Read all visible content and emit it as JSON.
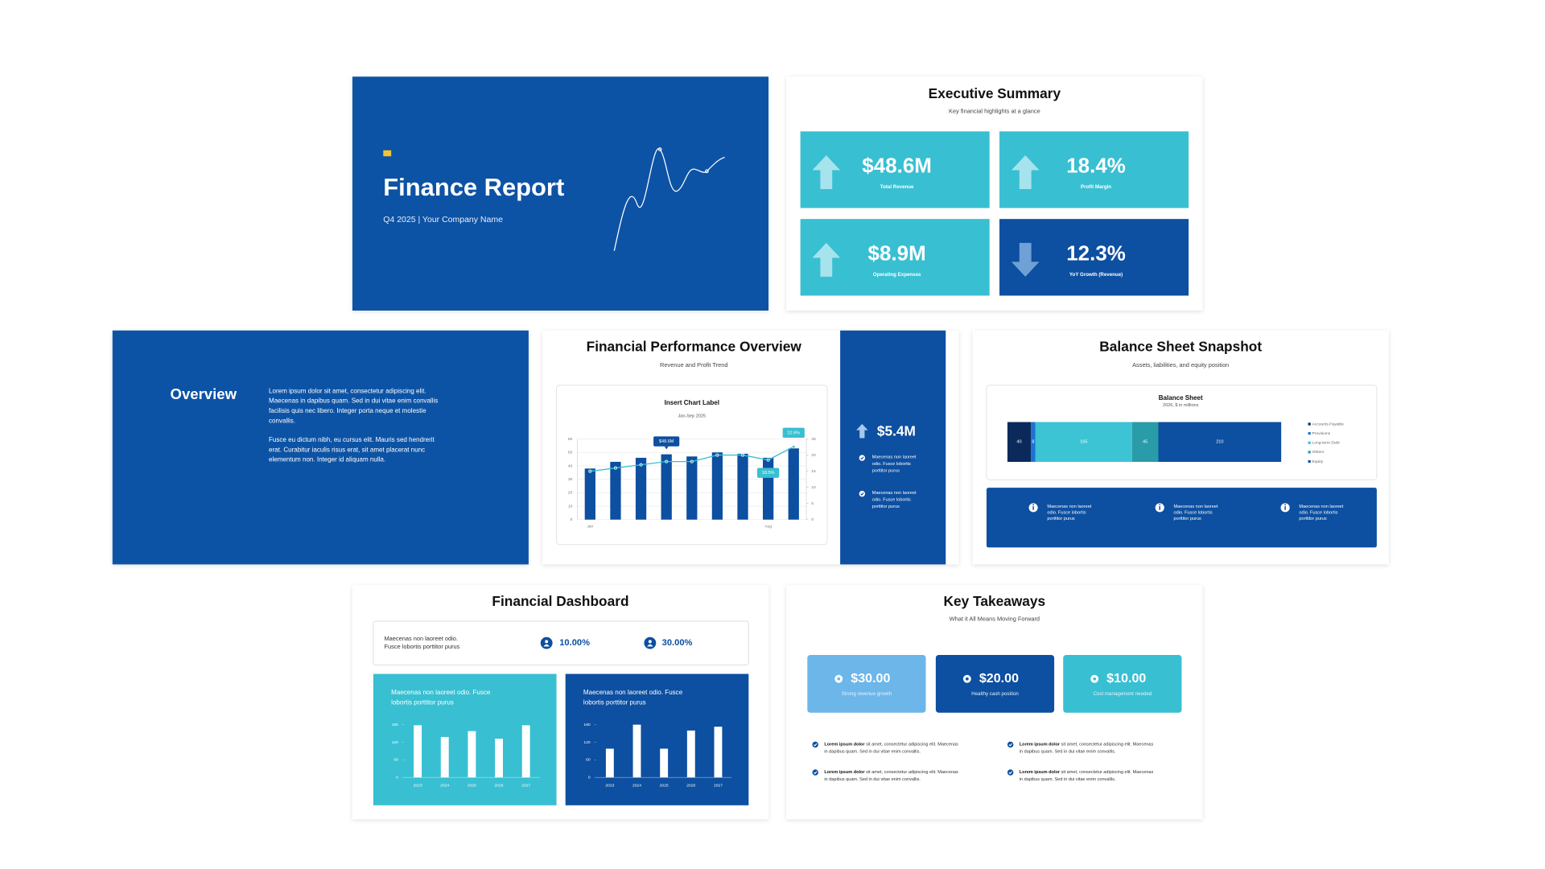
{
  "slides": {
    "title_slide": {
      "title": "Finance Report",
      "subtitle": "Q4 2025 | Your Company Name"
    },
    "executive_summary": {
      "title": "Executive Summary",
      "subtitle": "Key financial highlights at a glance",
      "kpis": [
        {
          "value": "$48.6M",
          "label": "Total Revenue",
          "direction": "up"
        },
        {
          "value": "18.4%",
          "label": "Profit Margin",
          "direction": "up"
        },
        {
          "value": "$8.9M",
          "label": "Operating Expenses",
          "direction": "up"
        },
        {
          "value": "12.3%",
          "label": "YoY Growth (Revenue)",
          "direction": "down"
        }
      ]
    },
    "overview": {
      "title": "Overview",
      "paragraphs": [
        [
          "Lorem ipsum dolor sit amet, consectetur adipiscing elit.",
          "Maecenas in dapibus quam. Sed in dui vitae enim convallis",
          "facilisis quis nec libero. Integer porta neque et molestie",
          "convallis."
        ],
        [
          "Fusce eu dictum nibh, eu cursus elit. Mauris sed hendrerit",
          "erat. Curabitur iaculis risus erat, sit amet placerat nunc",
          "elementum non. Integer id aliquam nulla."
        ]
      ]
    },
    "performance": {
      "title": "Financial Performance Overview",
      "subtitle": "Revenue and Profit Trend",
      "highlight": "$5.4M",
      "bullets": [
        [
          "Maecenas non laoreet",
          "odio. Fusce lobortis",
          "porttitor purus"
        ],
        [
          "Maecenas non laoreet",
          "odio. Fusce lobortis",
          "porttitor purus"
        ]
      ]
    },
    "balance_sheet": {
      "title": "Balance Sheet Snapshot",
      "subtitle": "Assets, liabilities, and equity position",
      "notes": [
        [
          "Maecenas non laoreet",
          "odio. Fusce lobortis",
          "porttitor purus"
        ],
        [
          "Maecenas non laoreet",
          "odio. Fusce lobortis",
          "porttitor purus"
        ],
        [
          "Maecenas non laoreet",
          "odio. Fusce lobortis",
          "porttitor purus"
        ]
      ]
    },
    "dashboard": {
      "title": "Financial Dashboard",
      "description": [
        "Maecenas non laoreet odio.",
        "Fusce lobortis porttitor purus"
      ],
      "stats": [
        "10.00%",
        "30.00%"
      ]
    },
    "takeaways": {
      "title": "Key Takeaways",
      "subtitle": "What it All Means Moving Forward",
      "cards": [
        {
          "value": "$30.00",
          "label": "Strong revenue growth"
        },
        {
          "value": "$20.00",
          "label": "Healthy cash position"
        },
        {
          "value": "$10.00",
          "label": "Cost management needed"
        }
      ],
      "bullets": [
        {
          "bold": "Lorem ipsum dolor",
          "rest": " sit amet, consectetur adipiscing elit. Maecenas",
          "line2": "in dapibus quam. Sed in dui vitae enim convallis."
        },
        {
          "bold": "Lorem ipsum dolor",
          "rest": " sit amet, consectetur adipiscing elit. Maecenas",
          "line2": "in dapibus quam. Sed in dui vitae enim convallis."
        },
        {
          "bold": "Lorem ipsum dolor",
          "rest": " sit amet, consectetur adipiscing elit. Maecenas",
          "line2": "in dapibus quam. Sed in dui vitae enim convallis."
        },
        {
          "bold": "Lorem ipsum dolor",
          "rest": " sit amet, consectetur adipiscing elit. Maecenas",
          "line2": "in dapibus quam. Sed in dui vitae enim convallis."
        }
      ]
    }
  },
  "chart_data": [
    {
      "type": "combo",
      "title": "Insert Chart Label",
      "subtitle": "Jan-Sep 2025",
      "categories": [
        "Jan",
        null,
        null,
        null,
        null,
        null,
        null,
        "Aug",
        null
      ],
      "series": [
        {
          "type": "bar",
          "color": "#0d4fa0",
          "values": [
            38,
            43,
            46,
            48.6,
            47,
            50,
            49,
            46,
            53
          ],
          "value_labels": [
            null,
            null,
            null,
            "$48.6M",
            null,
            null,
            null,
            null,
            null
          ]
        },
        {
          "type": "line",
          "axis": "y2",
          "color": "#38bfd2",
          "values": [
            15,
            16,
            17,
            18,
            18,
            20,
            20,
            18.5,
            22.6
          ],
          "value_labels": [
            null,
            null,
            null,
            null,
            null,
            null,
            null,
            "18.5%",
            "22.6%"
          ]
        }
      ],
      "ylim": [
        0,
        60
      ],
      "yticks": [
        0,
        10,
        20,
        30,
        40,
        50,
        60
      ],
      "y2lim": [
        0,
        25
      ],
      "y2ticks": [
        0,
        5,
        10,
        15,
        20,
        25
      ],
      "grid": true
    },
    {
      "type": "stacked_bar",
      "orientation": "horizontal",
      "title": "Balance Sheet",
      "subtitle": "2026, $ in millions",
      "series": [
        {
          "name": "Accounts Payable",
          "color": "#0b2a5b",
          "values": [
            40
          ]
        },
        {
          "name": "Provisions",
          "color": "#1e73d2",
          "values": [
            8
          ]
        },
        {
          "name": "Long-term Debt",
          "color": "#3cc3d4",
          "values": [
            165
          ]
        },
        {
          "name": "Others",
          "color": "#2a9ba8",
          "values": [
            45
          ]
        },
        {
          "name": "Equity",
          "color": "#0d4fa0",
          "values": [
            210
          ]
        }
      ],
      "legend": "right"
    },
    {
      "type": "bar",
      "title": [
        "Maecenas non laoreet odio. Fusce",
        "lobortis porttitor purus"
      ],
      "categories": [
        "2023",
        "2024",
        "2025",
        "2026",
        "2027"
      ],
      "values": [
        178,
        138,
        158,
        132,
        178
      ],
      "color": "#ffffff",
      "ylim": [
        0,
        180
      ],
      "yticks": [
        0,
        60,
        120,
        180
      ]
    },
    {
      "type": "bar",
      "title": [
        "Maecenas non laoreet odio. Fusce",
        "lobortis porttitor purus"
      ],
      "categories": [
        "2023",
        "2024",
        "2025",
        "2026",
        "2027"
      ],
      "values": [
        98,
        180,
        98,
        160,
        173
      ],
      "color": "#ffffff",
      "ylim": [
        0,
        180
      ],
      "yticks": [
        0,
        60,
        120,
        180
      ]
    }
  ]
}
